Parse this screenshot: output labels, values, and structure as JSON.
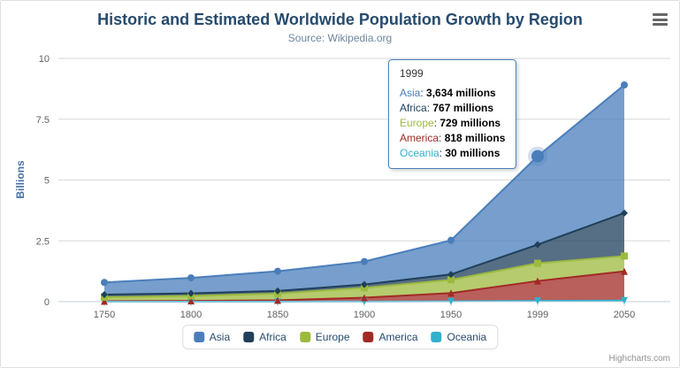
{
  "title": "Historic and Estimated Worldwide Population Growth by Region",
  "subtitle": "Source: Wikipedia.org",
  "credit": "Highcharts.com",
  "colors": {
    "title": "#274b6d",
    "subtitle": "#6d869f",
    "axis_labels": "#606060",
    "y_axis_title": "#4572a7",
    "gridline": "#d8d8d8",
    "axis_line": "#c0d0e0",
    "tooltip_border": "#4a7ebb",
    "legend_text": "#274b6d"
  },
  "tooltip": {
    "header": "1999",
    "rows": [
      {
        "name": "Asia",
        "value": "3,634 millions"
      },
      {
        "name": "Africa",
        "value": "767 millions"
      },
      {
        "name": "Europe",
        "value": "729 millions"
      },
      {
        "name": "America",
        "value": "818 millions"
      },
      {
        "name": "Oceania",
        "value": "30 millions"
      }
    ]
  },
  "chart_data": {
    "type": "area",
    "stacking": "normal",
    "title": "Historic and Estimated Worldwide Population Growth by Region",
    "subtitle": "Source: Wikipedia.org",
    "xlabel": "",
    "ylabel": "Billions",
    "ylim": [
      0,
      10
    ],
    "yticks": [
      0,
      2.5,
      5,
      7.5,
      10
    ],
    "unit": "millions",
    "grid": true,
    "legend_position": "bottom",
    "categories": [
      "1750",
      "1800",
      "1850",
      "1900",
      "1950",
      "1999",
      "2050"
    ],
    "series": [
      {
        "name": "Asia",
        "color": "#4a7ebb",
        "marker": "circle",
        "values": [
          502,
          635,
          809,
          947,
          1402,
          3634,
          5268
        ]
      },
      {
        "name": "Africa",
        "color": "#1f3f5b",
        "marker": "diamond",
        "values": [
          106,
          107,
          111,
          133,
          221,
          767,
          1766
        ]
      },
      {
        "name": "Europe",
        "color": "#9cba3d",
        "marker": "square",
        "values": [
          163,
          203,
          276,
          408,
          547,
          729,
          628
        ]
      },
      {
        "name": "America",
        "color": "#a22a25",
        "marker": "triangle",
        "values": [
          18,
          31,
          54,
          156,
          339,
          818,
          1201
        ]
      },
      {
        "name": "Oceania",
        "color": "#31b0cd",
        "marker": "triangle-down",
        "values": [
          2,
          2,
          2,
          6,
          13,
          30,
          46
        ]
      }
    ],
    "hover": {
      "series": "Asia",
      "category": "1999"
    }
  }
}
